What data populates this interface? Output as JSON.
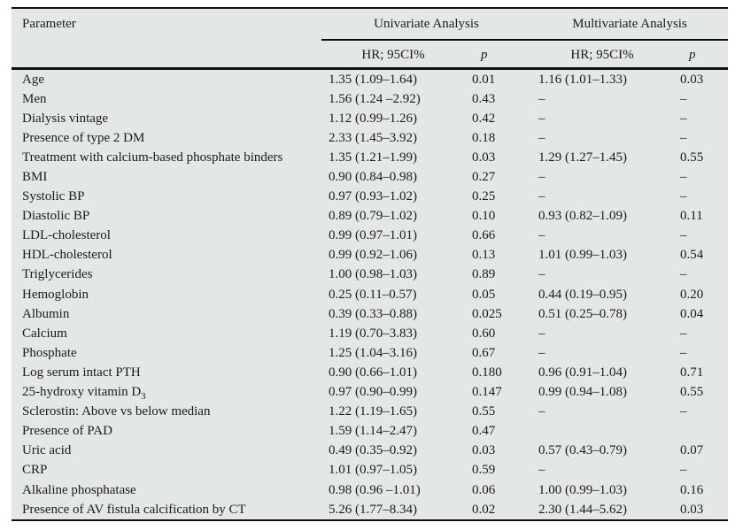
{
  "table": {
    "colors": {
      "background": "#e3e7e8",
      "rule": "#101010",
      "text": "#1b1b1b"
    },
    "headers": {
      "parameter": "Parameter",
      "univariate_group": "Univariate Analysis",
      "multivariate_group": "Multivariate Analysis",
      "hr_ci": "HR; 95CI%",
      "p": "p"
    },
    "rows": [
      {
        "param": "Age",
        "uni_hr": "1.35 (1.09–1.64)",
        "uni_p": "0.01",
        "multi_hr": "1.16 (1.01–1.33)",
        "multi_p": "0.03"
      },
      {
        "param": "Men",
        "uni_hr": "1.56 (1.24 –2.92)",
        "uni_p": "0.43",
        "multi_hr": "–",
        "multi_p": "–"
      },
      {
        "param": "Dialysis vintage",
        "uni_hr": "1.12 (0.99–1.26)",
        "uni_p": "0.42",
        "multi_hr": "–",
        "multi_p": "–"
      },
      {
        "param": "Presence of type 2 DM",
        "uni_hr": "2.33 (1.45–3.92)",
        "uni_p": "0.18",
        "multi_hr": "–",
        "multi_p": "–"
      },
      {
        "param": "Treatment with calcium-based phosphate binders",
        "uni_hr": "1.35 (1.21–1.99)",
        "uni_p": "0.03",
        "multi_hr": "1.29 (1.27–1.45)",
        "multi_p": "0.55"
      },
      {
        "param": "BMI",
        "uni_hr": "0.90 (0.84–0.98)",
        "uni_p": "0.27",
        "multi_hr": "–",
        "multi_p": "–"
      },
      {
        "param": "Systolic BP",
        "uni_hr": "0.97 (0.93–1.02)",
        "uni_p": "0.25",
        "multi_hr": "–",
        "multi_p": "–"
      },
      {
        "param": "Diastolic BP",
        "uni_hr": "0.89 (0.79–1.02)",
        "uni_p": "0.10",
        "multi_hr": "0.93 (0.82–1.09)",
        "multi_p": "0.11"
      },
      {
        "param": "LDL-cholesterol",
        "uni_hr": "0.99 (0.97–1.01)",
        "uni_p": "0.66",
        "multi_hr": "–",
        "multi_p": "–"
      },
      {
        "param": "HDL-cholesterol",
        "uni_hr": "0.99 (0.92–1.06)",
        "uni_p": "0.13",
        "multi_hr": "1.01 (0.99–1.03)",
        "multi_p": "0.54"
      },
      {
        "param": "Triglycerides",
        "uni_hr": "1.00 (0.98–1.03)",
        "uni_p": "0.89",
        "multi_hr": "–",
        "multi_p": "–"
      },
      {
        "param": "Hemoglobin",
        "uni_hr": "0.25 (0.11–0.57)",
        "uni_p": "0.05",
        "multi_hr": "0.44 (0.19–0.95)",
        "multi_p": "0.20"
      },
      {
        "param": "Albumin",
        "uni_hr": "0.39 (0.33–0.88)",
        "uni_p": "0.025",
        "multi_hr": "0.51 (0.25–0.78)",
        "multi_p": "0.04"
      },
      {
        "param": "Calcium",
        "uni_hr": "1.19 (0.70–3.83)",
        "uni_p": "0.60",
        "multi_hr": "–",
        "multi_p": "–"
      },
      {
        "param": "Phosphate",
        "uni_hr": "1.25 (1.04–3.16)",
        "uni_p": "0.67",
        "multi_hr": "–",
        "multi_p": "–"
      },
      {
        "param": "Log serum intact PTH",
        "uni_hr": "0.90 (0.66–1.01)",
        "uni_p": "0.180",
        "multi_hr": "0.96 (0.91–1.04)",
        "multi_p": "0.71"
      },
      {
        "param": "25-hydroxy vitamin D",
        "param_sub": "3",
        "uni_hr": "0.97 (0.90–0.99)",
        "uni_p": "0.147",
        "multi_hr": "0.99 (0.94–1.08)",
        "multi_p": "0.55"
      },
      {
        "param": "Sclerostin: Above vs below median",
        "uni_hr": "1.22 (1.19–1.65)",
        "uni_p": "0.55",
        "multi_hr": "–",
        "multi_p": "–"
      },
      {
        "param": "Presence of PAD",
        "uni_hr": "1.59 (1.14–2.47)",
        "uni_p": "0.47",
        "multi_hr": "",
        "multi_p": ""
      },
      {
        "param": "Uric acid",
        "uni_hr": "0.49 (0.35–0.92)",
        "uni_p": "0.03",
        "multi_hr": "0.57 (0.43–0.79)",
        "multi_p": "0.07"
      },
      {
        "param": "CRP",
        "uni_hr": "1.01 (0.97–1.05)",
        "uni_p": "0.59",
        "multi_hr": "–",
        "multi_p": "–"
      },
      {
        "param": "Alkaline phosphatase",
        "uni_hr": "0.98 (0.96 –1.01)",
        "uni_p": "0.06",
        "multi_hr": "1.00 (0.99–1.03)",
        "multi_p": "0.16"
      },
      {
        "param": "Presence of AV fistula calcification by CT",
        "uni_hr": "5.26 (1.77–8.34)",
        "uni_p": "0.02",
        "multi_hr": "2.30 (1.44–5.62)",
        "multi_p": "0.03"
      }
    ]
  }
}
